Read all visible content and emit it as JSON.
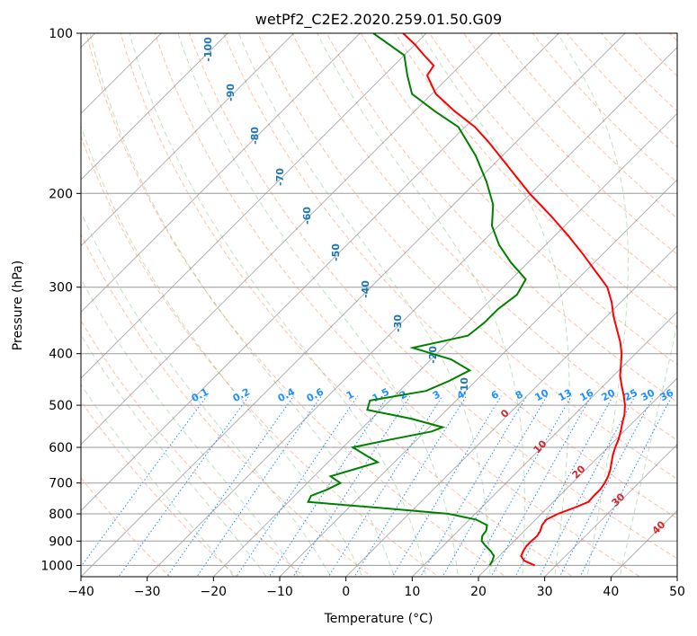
{
  "chart_data": {
    "type": "line",
    "subtype": "skew-t log-p diagram",
    "title": "wetPf2_C2E2.2020.259.01.50.G09",
    "xlabel": "Temperature (°C)",
    "ylabel": "Pressure (hPa)",
    "xlim": [
      -40,
      50
    ],
    "ylim": [
      1050,
      100
    ],
    "y_scale": "log",
    "grid": true,
    "x_ticks": [
      "−40",
      "−30",
      "−20",
      "−10",
      "0",
      "10",
      "20",
      "30",
      "40",
      "50"
    ],
    "y_ticks": [
      "100",
      "200",
      "300",
      "400",
      "500",
      "600",
      "700",
      "800",
      "900",
      "1000"
    ],
    "series": [
      {
        "color": "#ff0000",
        "points": [
          [
            1000,
            26.8
          ],
          [
            980,
            24.5
          ],
          [
            960,
            23.3
          ],
          [
            940,
            22.9
          ],
          [
            920,
            22.6
          ],
          [
            900,
            22.6
          ],
          [
            880,
            22.7
          ],
          [
            860,
            22.4
          ],
          [
            840,
            21.8
          ],
          [
            820,
            21.6
          ],
          [
            800,
            22.5
          ],
          [
            780,
            24.0
          ],
          [
            760,
            25.3
          ],
          [
            740,
            25.2
          ],
          [
            720,
            25.2
          ],
          [
            700,
            24.9
          ],
          [
            680,
            24.4
          ],
          [
            660,
            23.7
          ],
          [
            640,
            22.8
          ],
          [
            620,
            21.9
          ],
          [
            600,
            21.1
          ],
          [
            580,
            20.4
          ],
          [
            560,
            19.5
          ],
          [
            540,
            18.5
          ],
          [
            520,
            17.5
          ],
          [
            500,
            16.2
          ],
          [
            480,
            14.6
          ],
          [
            460,
            12.8
          ],
          [
            440,
            11.0
          ],
          [
            420,
            9.5
          ],
          [
            400,
            7.9
          ],
          [
            380,
            5.9
          ],
          [
            360,
            3.5
          ],
          [
            340,
            1.0
          ],
          [
            320,
            -1.4
          ],
          [
            300,
            -4.3
          ],
          [
            280,
            -8.5
          ],
          [
            260,
            -13.0
          ],
          [
            240,
            -18.0
          ],
          [
            220,
            -23.7
          ],
          [
            200,
            -30.2
          ],
          [
            180,
            -36.8
          ],
          [
            160,
            -44.2
          ],
          [
            150,
            -48.5
          ],
          [
            140,
            -54.0
          ],
          [
            130,
            -59.4
          ],
          [
            120,
            -63.5
          ],
          [
            115,
            -64.0
          ],
          [
            110,
            -67.0
          ],
          [
            105,
            -70.0
          ],
          [
            100,
            -73.5
          ]
        ]
      },
      {
        "color": "#008000",
        "points": [
          [
            1000,
            20.0
          ],
          [
            980,
            19.7
          ],
          [
            960,
            19.2
          ],
          [
            940,
            18.0
          ],
          [
            920,
            16.5
          ],
          [
            900,
            15.1
          ],
          [
            880,
            14.4
          ],
          [
            860,
            14.2
          ],
          [
            840,
            13.5
          ],
          [
            820,
            11.0
          ],
          [
            800,
            6.0
          ],
          [
            780,
            -5.0
          ],
          [
            760,
            -17.0
          ],
          [
            740,
            -17.5
          ],
          [
            720,
            -16.0
          ],
          [
            700,
            -15.0
          ],
          [
            680,
            -17.5
          ],
          [
            660,
            -15.0
          ],
          [
            640,
            -12.5
          ],
          [
            620,
            -15.5
          ],
          [
            600,
            -18.5
          ],
          [
            580,
            -14.0
          ],
          [
            560,
            -9.0
          ],
          [
            550,
            -8.0
          ],
          [
            530,
            -14.0
          ],
          [
            510,
            -22.0
          ],
          [
            490,
            -23.0
          ],
          [
            470,
            -16.0
          ],
          [
            450,
            -14.0
          ],
          [
            430,
            -12.5
          ],
          [
            410,
            -17.0
          ],
          [
            390,
            -24.5
          ],
          [
            370,
            -18.0
          ],
          [
            350,
            -17.5
          ],
          [
            330,
            -17.5
          ],
          [
            310,
            -16.8
          ],
          [
            290,
            -17.8
          ],
          [
            270,
            -22.5
          ],
          [
            250,
            -27.0
          ],
          [
            230,
            -31.0
          ],
          [
            210,
            -34.0
          ],
          [
            190,
            -38.5
          ],
          [
            170,
            -44.0
          ],
          [
            150,
            -51.0
          ],
          [
            140,
            -57.0
          ],
          [
            130,
            -63.0
          ],
          [
            120,
            -66.5
          ],
          [
            110,
            -70.0
          ],
          [
            100,
            -78.0
          ]
        ]
      }
    ],
    "dry_adiabat_labels": [
      "-100",
      "-90",
      "-80",
      "-70",
      "-60",
      "-50",
      "-40",
      "-30",
      "-20",
      "-10"
    ],
    "mixing_ratio_labels": [
      "0.1",
      "0.2",
      "0.4",
      "0.6",
      "1",
      "1.5",
      "2",
      "3",
      "4",
      "6",
      "8",
      "10",
      "13",
      "16",
      "20",
      "25",
      "30",
      "36"
    ],
    "moist_adiabat_labels": [
      "0",
      "10",
      "20",
      "30",
      "40"
    ]
  }
}
